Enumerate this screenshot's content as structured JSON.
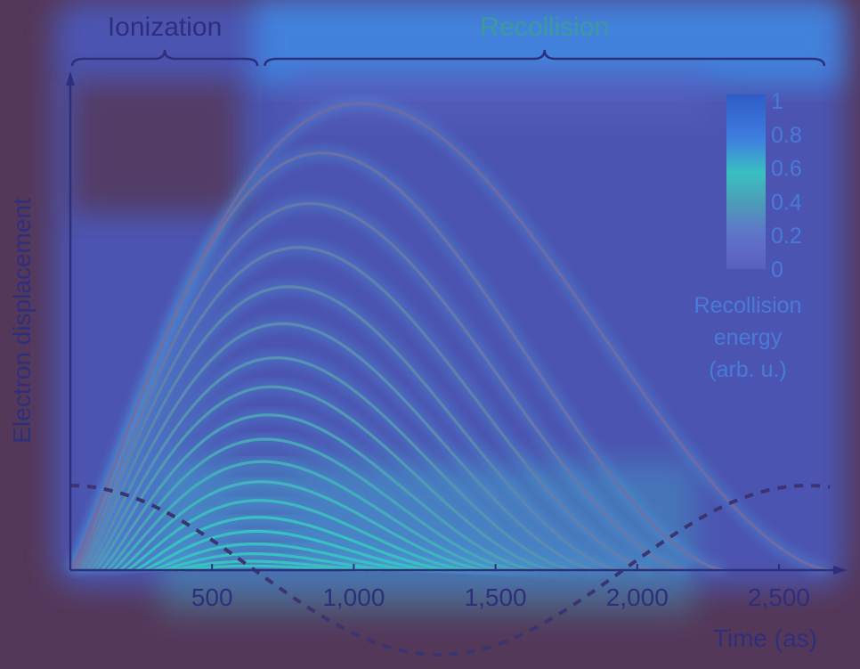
{
  "chart_data": {
    "type": "line",
    "title": "",
    "xlabel": "Time (as)",
    "ylabel": "Electron displacement",
    "xlim": [
      0,
      2720
    ],
    "ylim": [
      0,
      1
    ],
    "x_ticks": [
      "500",
      "1,000",
      "1,500",
      "2,000",
      "2,500"
    ],
    "x_tick_values": [
      500,
      1000,
      1500,
      2000,
      2500
    ],
    "regions": [
      {
        "label": "Ionization",
        "x_range": [
          0,
          660
        ]
      },
      {
        "label": "Recollision",
        "x_range": [
          680,
          2660
        ]
      }
    ],
    "colorbar": {
      "label": "Recollision\nenergy\n(arb. u.)",
      "ticks": [
        "1",
        "0.8",
        "0.6",
        "0.4",
        "0.2",
        "0"
      ]
    },
    "series": [
      {
        "start": 0,
        "end": 2680,
        "peak": 0.998
      },
      {
        "start": 10,
        "end": 2310,
        "peak": 0.892
      },
      {
        "start": 20,
        "end": 2180,
        "peak": 0.784
      },
      {
        "start": 30,
        "end": 2060,
        "peak": 0.69
      },
      {
        "start": 45,
        "end": 1945,
        "peak": 0.606
      },
      {
        "start": 60,
        "end": 1865,
        "peak": 0.527
      },
      {
        "start": 75,
        "end": 1785,
        "peak": 0.454
      },
      {
        "start": 90,
        "end": 1715,
        "peak": 0.392
      },
      {
        "start": 110,
        "end": 1650,
        "peak": 0.332
      },
      {
        "start": 130,
        "end": 1590,
        "peak": 0.28
      },
      {
        "start": 150,
        "end": 1535,
        "peak": 0.232
      },
      {
        "start": 175,
        "end": 1480,
        "peak": 0.189
      },
      {
        "start": 200,
        "end": 1420,
        "peak": 0.149
      },
      {
        "start": 230,
        "end": 1360,
        "peak": 0.113
      },
      {
        "start": 260,
        "end": 1300,
        "peak": 0.083
      },
      {
        "start": 290,
        "end": 1240,
        "peak": 0.056
      },
      {
        "start": 320,
        "end": 1170,
        "peak": 0.035
      },
      {
        "start": 350,
        "end": 1100,
        "peak": 0.019
      },
      {
        "start": 380,
        "end": 1040,
        "peak": 0.009
      }
    ],
    "field": {
      "style": "dashed",
      "period": 2600,
      "amplitude": 0.18,
      "phase_start_x": 0
    },
    "colors": {
      "background": "#54385a",
      "glow": "#3f7de0",
      "curve_high": "#6f6aa5",
      "curve_low": "#39c0c0",
      "axis": "#2e2f7c",
      "text": "#2e2f7c",
      "region_text": "#3b9a9e",
      "field": "#3b3470"
    }
  }
}
